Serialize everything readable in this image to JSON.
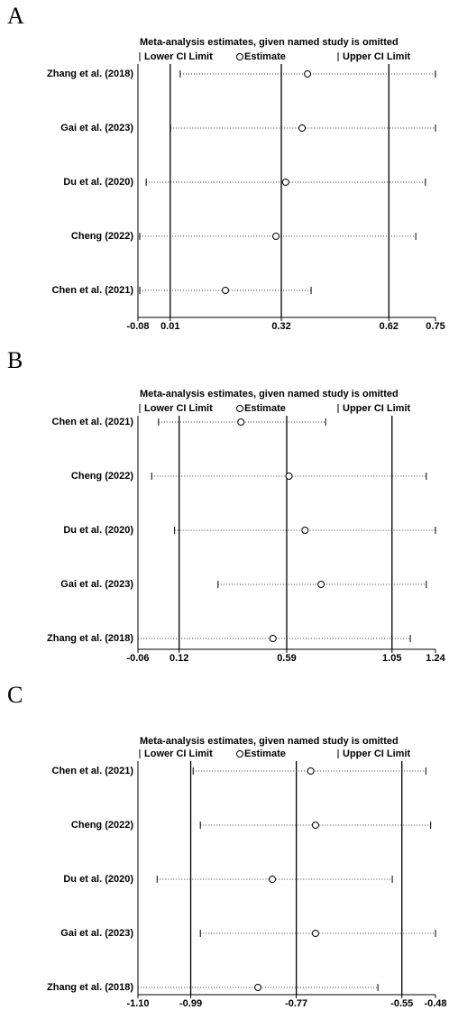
{
  "chart_data": [
    {
      "type": "forest",
      "panel": "A",
      "title": "Meta-analysis estimates, given named study is omitted",
      "legend": {
        "lower": "Lower CI Limit",
        "estimate": "Estimate",
        "upper": "Upper CI Limit"
      },
      "categories": [
        "Zhang et al. (2018)",
        "Gai et al. (2023)",
        "Du et al. (2020)",
        "Cheng (2022)",
        "Chen et al. (2021)"
      ],
      "lower": [
        0.038,
        0.011,
        -0.057,
        -0.075,
        -0.075
      ],
      "estimate": [
        0.393,
        0.378,
        0.332,
        0.305,
        0.164
      ],
      "upper": [
        0.75,
        0.75,
        0.722,
        0.695,
        0.403
      ],
      "xlim": [
        -0.08,
        0.75
      ],
      "xticks": [
        -0.08,
        0.01,
        0.32,
        0.62,
        0.75
      ]
    },
    {
      "type": "forest",
      "panel": "B",
      "title": "Meta-analysis estimates, given named study is omitted",
      "legend": {
        "lower": "Lower CI Limit",
        "estimate": "Estimate",
        "upper": "Upper CI Limit"
      },
      "categories": [
        "Chen et al. (2021)",
        "Cheng (2022)",
        "Du et al. (2020)",
        "Gai et al. (2023)",
        "Zhang et al. (2018)"
      ],
      "lower": [
        0.03,
        0.0,
        0.1,
        0.29,
        -0.06
      ],
      "estimate": [
        0.39,
        0.6,
        0.67,
        0.74,
        0.53
      ],
      "upper": [
        0.76,
        1.2,
        1.24,
        1.2,
        1.13
      ],
      "xlim": [
        -0.06,
        1.24
      ],
      "xticks": [
        -0.06,
        0.12,
        0.59,
        1.05,
        1.24
      ]
    },
    {
      "type": "forest",
      "panel": "C",
      "title": "Meta-analysis estimates, given named study is omitted",
      "legend": {
        "lower": "Lower CI Limit",
        "estimate": "Estimate",
        "upper": "Upper CI Limit"
      },
      "categories": [
        "Chen et al. (2021)",
        "Cheng (2022)",
        "Du et al. (2020)",
        "Gai et al. (2023)",
        "Zhang et al. (2018)"
      ],
      "lower": [
        -0.985,
        -0.97,
        -1.06,
        -0.97,
        -1.1
      ],
      "estimate": [
        -0.74,
        -0.73,
        -0.82,
        -0.73,
        -0.85
      ],
      "upper": [
        -0.5,
        -0.49,
        -0.57,
        -0.48,
        -0.6
      ],
      "xlim": [
        -1.1,
        -0.48
      ],
      "xticks": [
        {
          "value": -1.1,
          "label": "-1.10"
        },
        -0.99,
        -0.77,
        -0.55,
        -0.48
      ]
    }
  ]
}
